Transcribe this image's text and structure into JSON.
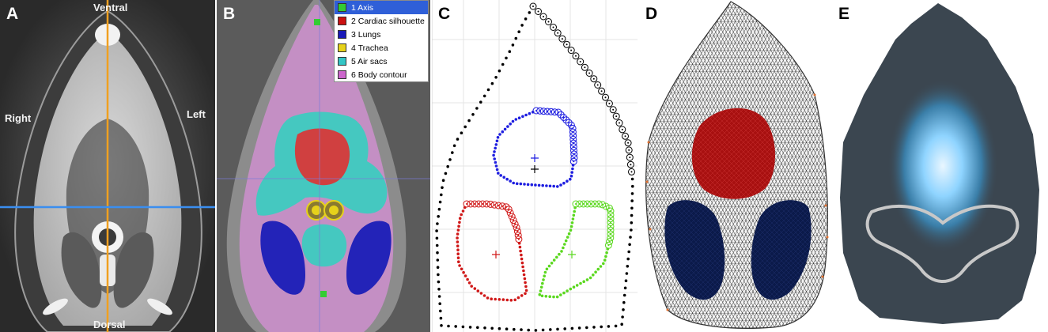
{
  "panels": {
    "a": {
      "letter": "A",
      "orient_ventral": "Ventral",
      "orient_dorsal": "Dorsal",
      "orient_right": "Right",
      "orient_left": "Left"
    },
    "b": {
      "letter": "B"
    },
    "c": {
      "letter": "C"
    },
    "d": {
      "letter": "D"
    },
    "e": {
      "letter": "E"
    }
  },
  "legend": {
    "items": [
      {
        "label": "1 Axis",
        "color": "#33cc33",
        "selected": true
      },
      {
        "label": "2 Cardiac silhouette",
        "color": "#cc1111",
        "selected": false
      },
      {
        "label": "3 Lungs",
        "color": "#1a1ab8",
        "selected": false
      },
      {
        "label": "4 Trachea",
        "color": "#e6d21a",
        "selected": false
      },
      {
        "label": "5 Air sacs",
        "color": "#33c6c6",
        "selected": false
      },
      {
        "label": "6 Body contour",
        "color": "#cc66cc",
        "selected": false
      }
    ]
  },
  "colors": {
    "axis_vertical": "#f0a020",
    "axis_horizontal": "#3a8ef0",
    "heart": "#c81414",
    "lungs_segmentation": "#2323b8",
    "lungs_mesh": "#0b1a4a",
    "air_sacs": "#45c8c0",
    "body_contour": "#c98fc9",
    "contour_black": "#000000",
    "contour_blue": "#1e1ee0",
    "contour_red": "#d01818",
    "contour_green": "#5ad81e",
    "eit_image_bg": "#3b4650",
    "eit_highlight": "#8fd4ff"
  }
}
